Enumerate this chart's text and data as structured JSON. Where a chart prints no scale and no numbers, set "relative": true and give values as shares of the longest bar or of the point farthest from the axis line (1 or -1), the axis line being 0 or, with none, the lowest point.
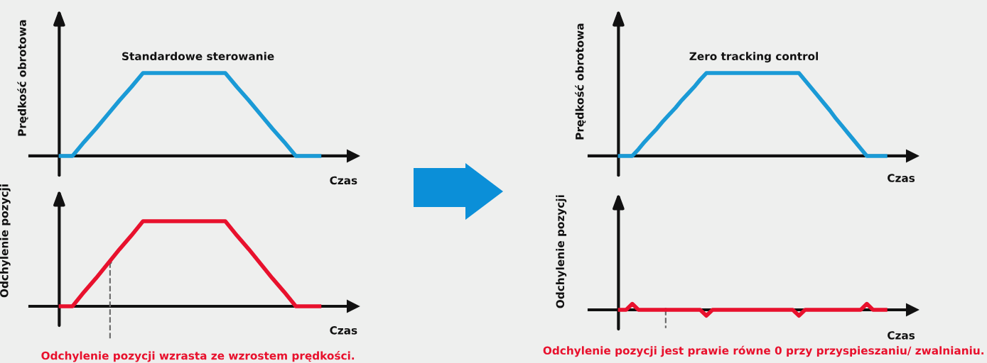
{
  "chart_data": [
    {
      "type": "line",
      "title": "Standardowe sterowanie",
      "ylabel": "Prędkość obrotowa",
      "xlabel": "Czas",
      "relative": true,
      "tick_labels": false,
      "marker": "none",
      "line_style": "solid",
      "categories": [
        null,
        null,
        null,
        null,
        null,
        null,
        null,
        null,
        null,
        null,
        null,
        null,
        null,
        null,
        null,
        null,
        null,
        null,
        null,
        null,
        null,
        null,
        null
      ],
      "series": [
        {
          "color": "#1a9ad6",
          "values": [
            0,
            0,
            0.17,
            0.33,
            0.5,
            0.67,
            0.83,
            1,
            1,
            1,
            1,
            1,
            1,
            1,
            1,
            0.83,
            0.67,
            0.5,
            0.33,
            0.17,
            0,
            0,
            0
          ]
        }
      ]
    },
    {
      "type": "line",
      "ylabel": "Odchylenie pozycji",
      "xlabel": "Czas",
      "relative": true,
      "tick_labels": false,
      "marker": "none",
      "line_style": "solid",
      "categories": [
        null,
        null,
        null,
        null,
        null,
        null,
        null,
        null,
        null,
        null,
        null,
        null,
        null,
        null,
        null,
        null,
        null,
        null,
        null,
        null,
        null,
        null,
        null
      ],
      "series": [
        {
          "color": "#e8112d",
          "values": [
            0,
            0,
            0.17,
            0.33,
            0.5,
            0.67,
            0.83,
            1,
            1,
            1,
            1,
            1,
            1,
            1,
            1,
            0.83,
            0.67,
            0.5,
            0.33,
            0.17,
            0,
            0,
            0
          ]
        }
      ],
      "annotations": [
        "Odchylenie pozycji wzrasta ze wzrostem prędkości."
      ]
    },
    {
      "type": "line",
      "title": "Zero tracking control",
      "ylabel": "Prędkość obrotowa",
      "xlabel": "Czas",
      "relative": true,
      "tick_labels": false,
      "marker": "none",
      "line_style": "solid",
      "categories": [
        null,
        null,
        null,
        null,
        null,
        null,
        null,
        null,
        null,
        null,
        null,
        null,
        null,
        null,
        null,
        null,
        null,
        null,
        null,
        null,
        null,
        null,
        null,
        null,
        null,
        null,
        null,
        null,
        null,
        null,
        null,
        null,
        null,
        null,
        null,
        null,
        null,
        null,
        null,
        null,
        null,
        null,
        null,
        null
      ],
      "series": [
        {
          "color": "#1a9ad6",
          "values": [
            0,
            0,
            0,
            0.08,
            0.17,
            0.25,
            0.33,
            0.42,
            0.5,
            0.58,
            0.67,
            0.75,
            0.83,
            0.92,
            1,
            1,
            1,
            1,
            1,
            1,
            1,
            1,
            1,
            1,
            1,
            1,
            1,
            1,
            1,
            1,
            0.91,
            0.82,
            0.73,
            0.64,
            0.55,
            0.45,
            0.36,
            0.27,
            0.18,
            0.09,
            0,
            0,
            0,
            0
          ]
        }
      ]
    },
    {
      "type": "line",
      "ylabel": "Odchylenie pozycji",
      "xlabel": "Czas",
      "relative": true,
      "tick_labels": false,
      "marker": "none",
      "line_style": "solid",
      "categories": [
        null,
        null,
        null,
        null,
        null,
        null,
        null,
        null,
        null,
        null,
        null,
        null,
        null,
        null,
        null,
        null,
        null,
        null,
        null,
        null,
        null,
        null,
        null,
        null,
        null,
        null,
        null,
        null,
        null,
        null,
        null,
        null,
        null,
        null,
        null,
        null,
        null,
        null,
        null,
        null,
        null,
        null,
        null,
        null
      ],
      "series": [
        {
          "color": "#e8112d",
          "values": [
            0,
            0,
            1,
            0,
            0,
            0,
            0,
            0,
            0,
            0,
            0,
            0,
            0,
            0,
            -1,
            0,
            0,
            0,
            0,
            0,
            0,
            0,
            0,
            0,
            0,
            0,
            0,
            0,
            0,
            -1,
            0,
            0,
            0,
            0,
            0,
            0,
            0,
            0,
            0,
            0,
            1,
            0,
            0,
            0
          ]
        }
      ],
      "annotations": [
        "Odchylenie pozycji jest prawie równe 0 przy przyspieszaniu/ zwalnianiu."
      ]
    }
  ]
}
